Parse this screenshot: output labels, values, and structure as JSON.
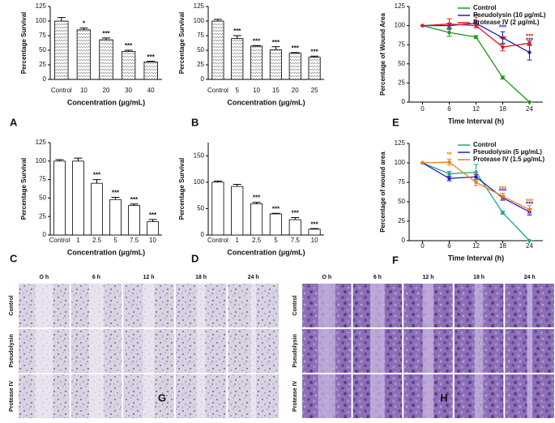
{
  "chart_data": [
    {
      "type": "bar",
      "panel": "A",
      "ylabel": "Percentage Survival",
      "xlabel": "Concentration (µg/mL)",
      "hatch": true,
      "color": "#ffffff",
      "categories": [
        "Control",
        "10",
        "20",
        "30",
        "40"
      ],
      "values": [
        100,
        85,
        68,
        48,
        30
      ],
      "errors": [
        6,
        3,
        3,
        2,
        1
      ],
      "significance": [
        null,
        "*",
        "***",
        "***",
        "***"
      ],
      "ylim": [
        0,
        125
      ],
      "yticks": [
        0,
        25,
        50,
        75,
        100,
        125
      ]
    },
    {
      "type": "bar",
      "panel": "B",
      "ylabel": "Percentage Survival",
      "xlabel": "Concentration (µg/mL)",
      "hatch": true,
      "color": "#ffffff",
      "categories": [
        "Control",
        "5",
        "10",
        "15",
        "20",
        "25"
      ],
      "values": [
        100,
        70,
        57,
        51,
        45,
        38
      ],
      "errors": [
        3,
        5,
        1,
        5,
        1,
        2
      ],
      "significance": [
        null,
        "***",
        "***",
        "***",
        "***",
        "***"
      ],
      "ylim": [
        0,
        125
      ],
      "yticks": [
        0,
        25,
        50,
        75,
        100,
        125
      ]
    },
    {
      "type": "bar",
      "panel": "C",
      "ylabel": "Percentage Survival",
      "xlabel": "Concentration (µg/mL)",
      "hatch": false,
      "color": "#ffffff",
      "categories": [
        "Control",
        "1",
        "2.5",
        "5",
        "7.5",
        "10"
      ],
      "values": [
        100,
        100,
        70,
        48,
        40,
        18
      ],
      "errors": [
        2,
        4,
        5,
        3,
        2,
        3
      ],
      "significance": [
        null,
        null,
        "***",
        "***",
        "***",
        "***"
      ],
      "ylim": [
        0,
        125
      ],
      "yticks": [
        0,
        25,
        50,
        75,
        100,
        125
      ]
    },
    {
      "type": "bar",
      "panel": "D",
      "ylabel": "Percentage Survival",
      "xlabel": "Concentration (µg/mL)",
      "hatch": false,
      "color": "#ffffff",
      "categories": [
        "Control",
        "1",
        "2.5",
        "5",
        "7.5",
        "10"
      ],
      "values": [
        100,
        92,
        59,
        40,
        29,
        11
      ],
      "errors": [
        2,
        4,
        3,
        1,
        4,
        1
      ],
      "significance": [
        null,
        null,
        "***",
        "***",
        "***",
        "***"
      ],
      "ylim": [
        0,
        175
      ],
      "yticks": [
        0,
        50,
        100,
        150
      ]
    },
    {
      "type": "line",
      "panel": "E",
      "ylabel": "Percentage of Wound Area",
      "xlabel": "Time Interval (h)",
      "x": [
        0,
        6,
        12,
        18,
        24
      ],
      "xlim": [
        -3,
        27
      ],
      "xticks": [
        0,
        6,
        12,
        18,
        24
      ],
      "ylim": [
        0,
        125
      ],
      "yticks": [
        0,
        25,
        50,
        75,
        100,
        125
      ],
      "series": [
        {
          "name": "Control",
          "color": "#1a9a1a",
          "values": [
            100,
            91,
            85,
            32,
            0
          ],
          "errors": [
            0,
            5,
            2,
            2,
            0
          ],
          "significance": [
            null,
            null,
            null,
            null,
            null
          ]
        },
        {
          "name": "Pseudolysin (10 µg/mL)",
          "color": "#1f1fbf",
          "values": [
            100,
            100,
            103,
            84,
            65
          ],
          "errors": [
            0,
            3,
            3,
            8,
            10
          ],
          "significance": [
            null,
            null,
            "**",
            "***",
            "***"
          ]
        },
        {
          "name": "Protease IV (2 µg/mL)",
          "color": "#e01b1b",
          "values": [
            100,
            102,
            100,
            72,
            77
          ],
          "errors": [
            0,
            7,
            3,
            5,
            3
          ],
          "significance": [
            null,
            null,
            "*",
            "***",
            "***"
          ]
        }
      ]
    },
    {
      "type": "line",
      "panel": "F",
      "ylabel": "Percentage of wound area",
      "xlabel": "Time Interval (h)",
      "x": [
        0,
        6,
        12,
        18,
        24
      ],
      "xlim": [
        -3,
        27
      ],
      "xticks": [
        0,
        6,
        12,
        18,
        24
      ],
      "ylim": [
        0,
        125
      ],
      "yticks": [
        0,
        25,
        50,
        75,
        100,
        125
      ],
      "series": [
        {
          "name": "Control",
          "color": "#1aa88a",
          "values": [
            100,
            86,
            88,
            36,
            0
          ],
          "errors": [
            0,
            3,
            10,
            2,
            0
          ],
          "significance": [
            null,
            null,
            null,
            null,
            null
          ]
        },
        {
          "name": "Pseudolysin (5 µg/mL)",
          "color": "#1f1fbf",
          "values": [
            100,
            80,
            82,
            55,
            37
          ],
          "errors": [
            0,
            3,
            3,
            3,
            4
          ],
          "significance": [
            null,
            null,
            null,
            "***",
            "***"
          ]
        },
        {
          "name": "Protease IV (1.5 µg/mL)",
          "color": "#f07a1a",
          "values": [
            100,
            101,
            75,
            57,
            40
          ],
          "errors": [
            0,
            4,
            4,
            4,
            5
          ],
          "significance": [
            null,
            "**",
            "*",
            "***",
            "***"
          ]
        }
      ]
    }
  ],
  "image_panels": [
    {
      "label": "G",
      "columns": [
        "O h",
        "6 h",
        "12 h",
        "18 h",
        "24 h"
      ],
      "rows": [
        "Control",
        "Pseudolysin",
        "Protease IV"
      ]
    },
    {
      "label": "H",
      "columns": [
        "O h",
        "6 h",
        "12 h",
        "18 h",
        "24 h"
      ],
      "rows": [
        "Control",
        "Pseudolysin",
        "Protease IV"
      ]
    }
  ]
}
